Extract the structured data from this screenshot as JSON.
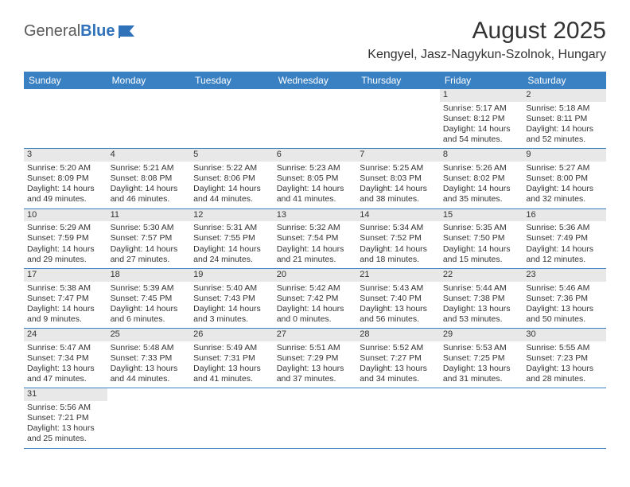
{
  "logo": {
    "general": "General",
    "blue": "Blue"
  },
  "title": "August 2025",
  "location": "Kengyel, Jasz-Nagykun-Szolnok, Hungary",
  "dayNames": [
    "Sunday",
    "Monday",
    "Tuesday",
    "Wednesday",
    "Thursday",
    "Friday",
    "Saturday"
  ],
  "colors": {
    "headerBg": "#3a81c4",
    "headerText": "#ffffff",
    "dayNumBg": "#e8e8e8",
    "rowBorder": "#3a81c4",
    "text": "#333333",
    "logoGray": "#5a5a5a",
    "logoBlue": "#2f72b9"
  },
  "weeks": [
    [
      null,
      null,
      null,
      null,
      null,
      {
        "n": "1",
        "sr": "5:17 AM",
        "ss": "8:12 PM",
        "dl": "14 hours and 54 minutes."
      },
      {
        "n": "2",
        "sr": "5:18 AM",
        "ss": "8:11 PM",
        "dl": "14 hours and 52 minutes."
      }
    ],
    [
      {
        "n": "3",
        "sr": "5:20 AM",
        "ss": "8:09 PM",
        "dl": "14 hours and 49 minutes."
      },
      {
        "n": "4",
        "sr": "5:21 AM",
        "ss": "8:08 PM",
        "dl": "14 hours and 46 minutes."
      },
      {
        "n": "5",
        "sr": "5:22 AM",
        "ss": "8:06 PM",
        "dl": "14 hours and 44 minutes."
      },
      {
        "n": "6",
        "sr": "5:23 AM",
        "ss": "8:05 PM",
        "dl": "14 hours and 41 minutes."
      },
      {
        "n": "7",
        "sr": "5:25 AM",
        "ss": "8:03 PM",
        "dl": "14 hours and 38 minutes."
      },
      {
        "n": "8",
        "sr": "5:26 AM",
        "ss": "8:02 PM",
        "dl": "14 hours and 35 minutes."
      },
      {
        "n": "9",
        "sr": "5:27 AM",
        "ss": "8:00 PM",
        "dl": "14 hours and 32 minutes."
      }
    ],
    [
      {
        "n": "10",
        "sr": "5:29 AM",
        "ss": "7:59 PM",
        "dl": "14 hours and 29 minutes."
      },
      {
        "n": "11",
        "sr": "5:30 AM",
        "ss": "7:57 PM",
        "dl": "14 hours and 27 minutes."
      },
      {
        "n": "12",
        "sr": "5:31 AM",
        "ss": "7:55 PM",
        "dl": "14 hours and 24 minutes."
      },
      {
        "n": "13",
        "sr": "5:32 AM",
        "ss": "7:54 PM",
        "dl": "14 hours and 21 minutes."
      },
      {
        "n": "14",
        "sr": "5:34 AM",
        "ss": "7:52 PM",
        "dl": "14 hours and 18 minutes."
      },
      {
        "n": "15",
        "sr": "5:35 AM",
        "ss": "7:50 PM",
        "dl": "14 hours and 15 minutes."
      },
      {
        "n": "16",
        "sr": "5:36 AM",
        "ss": "7:49 PM",
        "dl": "14 hours and 12 minutes."
      }
    ],
    [
      {
        "n": "17",
        "sr": "5:38 AM",
        "ss": "7:47 PM",
        "dl": "14 hours and 9 minutes."
      },
      {
        "n": "18",
        "sr": "5:39 AM",
        "ss": "7:45 PM",
        "dl": "14 hours and 6 minutes."
      },
      {
        "n": "19",
        "sr": "5:40 AM",
        "ss": "7:43 PM",
        "dl": "14 hours and 3 minutes."
      },
      {
        "n": "20",
        "sr": "5:42 AM",
        "ss": "7:42 PM",
        "dl": "14 hours and 0 minutes."
      },
      {
        "n": "21",
        "sr": "5:43 AM",
        "ss": "7:40 PM",
        "dl": "13 hours and 56 minutes."
      },
      {
        "n": "22",
        "sr": "5:44 AM",
        "ss": "7:38 PM",
        "dl": "13 hours and 53 minutes."
      },
      {
        "n": "23",
        "sr": "5:46 AM",
        "ss": "7:36 PM",
        "dl": "13 hours and 50 minutes."
      }
    ],
    [
      {
        "n": "24",
        "sr": "5:47 AM",
        "ss": "7:34 PM",
        "dl": "13 hours and 47 minutes."
      },
      {
        "n": "25",
        "sr": "5:48 AM",
        "ss": "7:33 PM",
        "dl": "13 hours and 44 minutes."
      },
      {
        "n": "26",
        "sr": "5:49 AM",
        "ss": "7:31 PM",
        "dl": "13 hours and 41 minutes."
      },
      {
        "n": "27",
        "sr": "5:51 AM",
        "ss": "7:29 PM",
        "dl": "13 hours and 37 minutes."
      },
      {
        "n": "28",
        "sr": "5:52 AM",
        "ss": "7:27 PM",
        "dl": "13 hours and 34 minutes."
      },
      {
        "n": "29",
        "sr": "5:53 AM",
        "ss": "7:25 PM",
        "dl": "13 hours and 31 minutes."
      },
      {
        "n": "30",
        "sr": "5:55 AM",
        "ss": "7:23 PM",
        "dl": "13 hours and 28 minutes."
      }
    ],
    [
      {
        "n": "31",
        "sr": "5:56 AM",
        "ss": "7:21 PM",
        "dl": "13 hours and 25 minutes."
      },
      null,
      null,
      null,
      null,
      null,
      null
    ]
  ],
  "labels": {
    "sunrise": "Sunrise:",
    "sunset": "Sunset:",
    "daylight": "Daylight:"
  }
}
